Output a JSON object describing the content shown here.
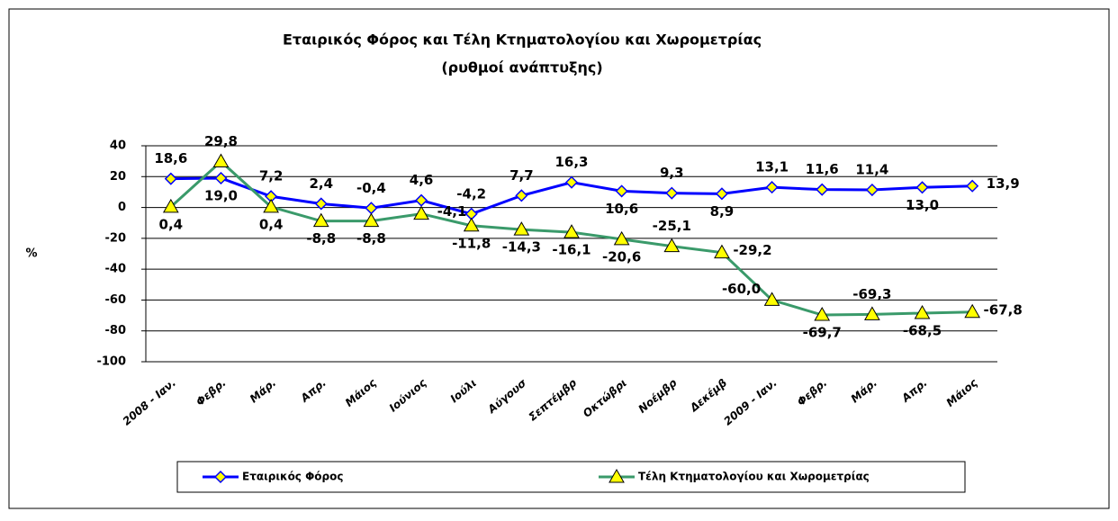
{
  "chart_data": {
    "type": "line",
    "title": "Εταιρικός Φόρος και Τέλη Κτηματολογίου και Χωρομετρίας",
    "subtitle": "(ρυθμοί ανάπτυξης)",
    "y_label": "%",
    "categories": [
      "2008 - Ιαν.",
      "Φεβρ.",
      "Μάρ.",
      "Απρ.",
      "Μάιος",
      "Ιούνιος",
      "Ιούλι",
      "Αύγουσ",
      "Σεπτέμβρ",
      "Οκτώβρι",
      "Νοέμβρ",
      "Δεκέμβ",
      "2009 - Ιαν.",
      "Φεβρ.",
      "Μάρ.",
      "Απρ.",
      "Μάιος"
    ],
    "series": [
      {
        "name": "Εταιρικός Φόρος",
        "color": "#0000ff",
        "marker": "diamond",
        "marker_color": "#ffff00",
        "values": [
          18.6,
          19.0,
          7.2,
          2.4,
          -0.4,
          4.6,
          -4.2,
          7.7,
          16.3,
          10.6,
          9.3,
          8.9,
          13.1,
          11.6,
          11.4,
          13.0,
          13.9
        ],
        "value_labels": [
          "18,6",
          "19,0",
          "7,2",
          "2,4",
          "-0,4",
          "4,6",
          "-4,2",
          "7,7",
          "16,3",
          "10,6",
          "9,3",
          "8,9",
          "13,1",
          "11,6",
          "11,4",
          "13,0",
          "13,9"
        ]
      },
      {
        "name": "Τέλη Κτηματολογίου και Χωρομετρίας",
        "color": "#3a9a6a",
        "marker": "triangle",
        "marker_color": "#ffff00",
        "values": [
          0.4,
          29.8,
          0.4,
          -8.8,
          -8.8,
          -4.1,
          -11.8,
          -14.3,
          -16.1,
          -20.6,
          -25.1,
          -29.2,
          -60.0,
          -69.7,
          -69.3,
          -68.5,
          -67.8
        ],
        "value_labels": [
          "0,4",
          "29,8",
          "0,4",
          "-8,8",
          "-8,8",
          "-4,1",
          "-11,8",
          "-14,3",
          "-16,1",
          "-20,6",
          "-25,1",
          "-29,2",
          "-60,0",
          "-69,7",
          "-69,3",
          "-68,5",
          "-67,8"
        ]
      }
    ],
    "ylim": [
      -100,
      40
    ],
    "yticks": [
      -100,
      -80,
      -60,
      -40,
      -20,
      0,
      20,
      40
    ],
    "grid": true,
    "legend": "bottom"
  }
}
